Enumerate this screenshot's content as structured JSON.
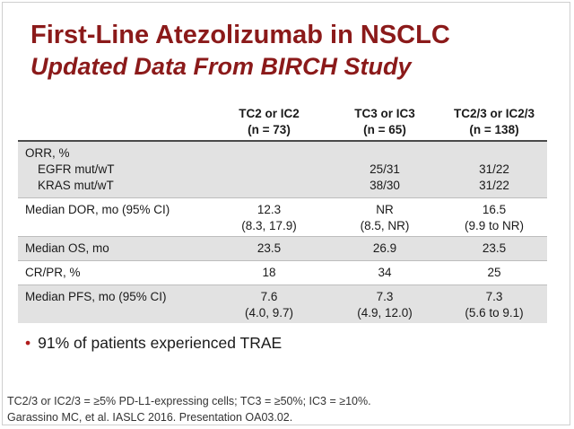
{
  "title": "First-Line Atezolizumab in NSCLC",
  "subtitle": "Updated Data From BIRCH Study",
  "table": {
    "columns": [
      {
        "line1": "TC2 or IC2",
        "line2": "(n = 73)"
      },
      {
        "line1": "TC3 or IC3",
        "line2": "(n = 65)"
      },
      {
        "line1": "TC2/3 or IC2/3",
        "line2": "(n = 138)"
      }
    ],
    "rows": {
      "orr": {
        "label": "ORR, %",
        "egfr_label": "EGFR mut/wT",
        "kras_label": "KRAS mut/wT",
        "c2_egfr": "25/31",
        "c2_kras": "38/30",
        "c3_egfr": "31/22",
        "c3_kras": "31/22"
      },
      "dor": {
        "label": "Median DOR, mo  (95% CI)",
        "c1_a": "12.3",
        "c1_b": "(8.3, 17.9)",
        "c2_a": "NR",
        "c2_b": "(8.5, NR)",
        "c3_a": "16.5",
        "c3_b": "(9.9 to NR)"
      },
      "os": {
        "label": "Median OS, mo",
        "c1": "23.5",
        "c2": "26.9",
        "c3": "23.5"
      },
      "crpr": {
        "label": "CR/PR, %",
        "c1": "18",
        "c2": "34",
        "c3": "25"
      },
      "pfs": {
        "label": "Median PFS, mo (95% CI)",
        "c1_a": "7.6",
        "c1_b": "(4.0, 9.7)",
        "c2_a": "7.3",
        "c2_b": "(4.9, 12.0)",
        "c3_a": "7.3",
        "c3_b": "(5.6 to 9.1)"
      }
    }
  },
  "bullet": "91% of patients experienced TRAE",
  "footnote1": "TC2/3 or IC2/3 = ≥5% PD-L1-expressing cells; TC3 = ≥50%; IC3 = ≥10%.",
  "footnote2": "Garassino MC, et al. IASLC 2016. Presentation OA03.02."
}
